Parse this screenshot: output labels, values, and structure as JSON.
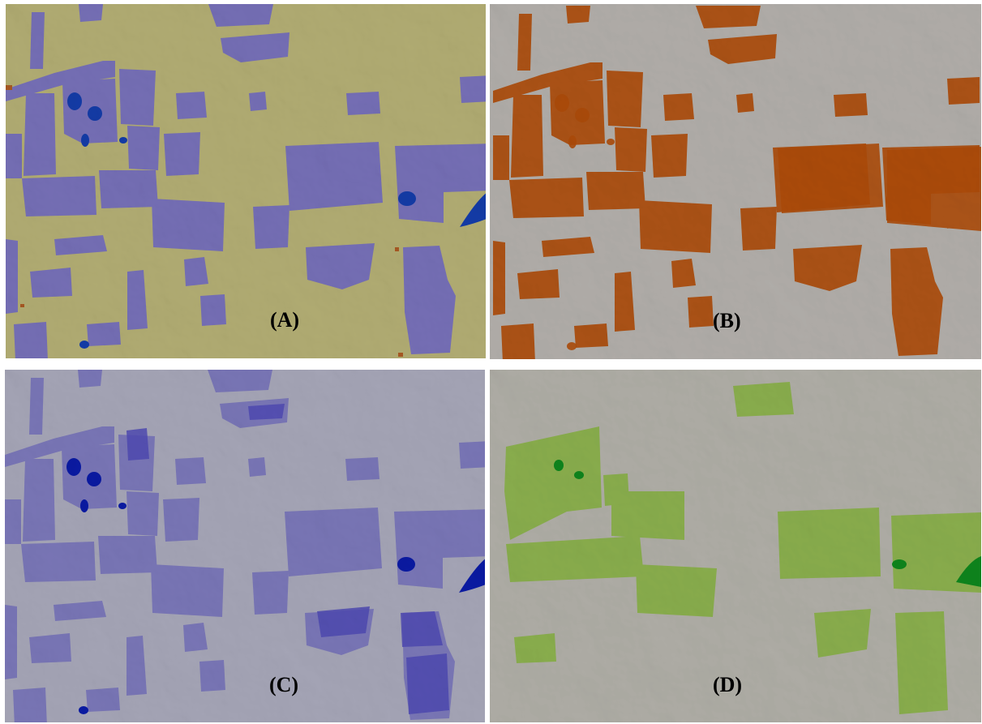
{
  "panels": [
    {
      "id": "A",
      "label": "(A)",
      "base_color": "#d6d08a",
      "overlay_color": "#8a82e0",
      "deep_color": "#1747c9",
      "accent_color": "#c96a2a"
    },
    {
      "id": "B",
      "label": "(B)",
      "base_color": "#d5d1cc",
      "overlay_color": "#cf5a0b"
    },
    {
      "id": "C",
      "label": "(C)",
      "base_color": "#c7c7dc",
      "overlay_color": "#8d88dc",
      "mid_color": "#5e58d6",
      "deep_color": "#0c1fc4"
    },
    {
      "id": "D",
      "label": "(D)",
      "base_color": "#d3d1c8",
      "overlay_color": "#9ed24a",
      "deep_color": "#11a022"
    }
  ]
}
